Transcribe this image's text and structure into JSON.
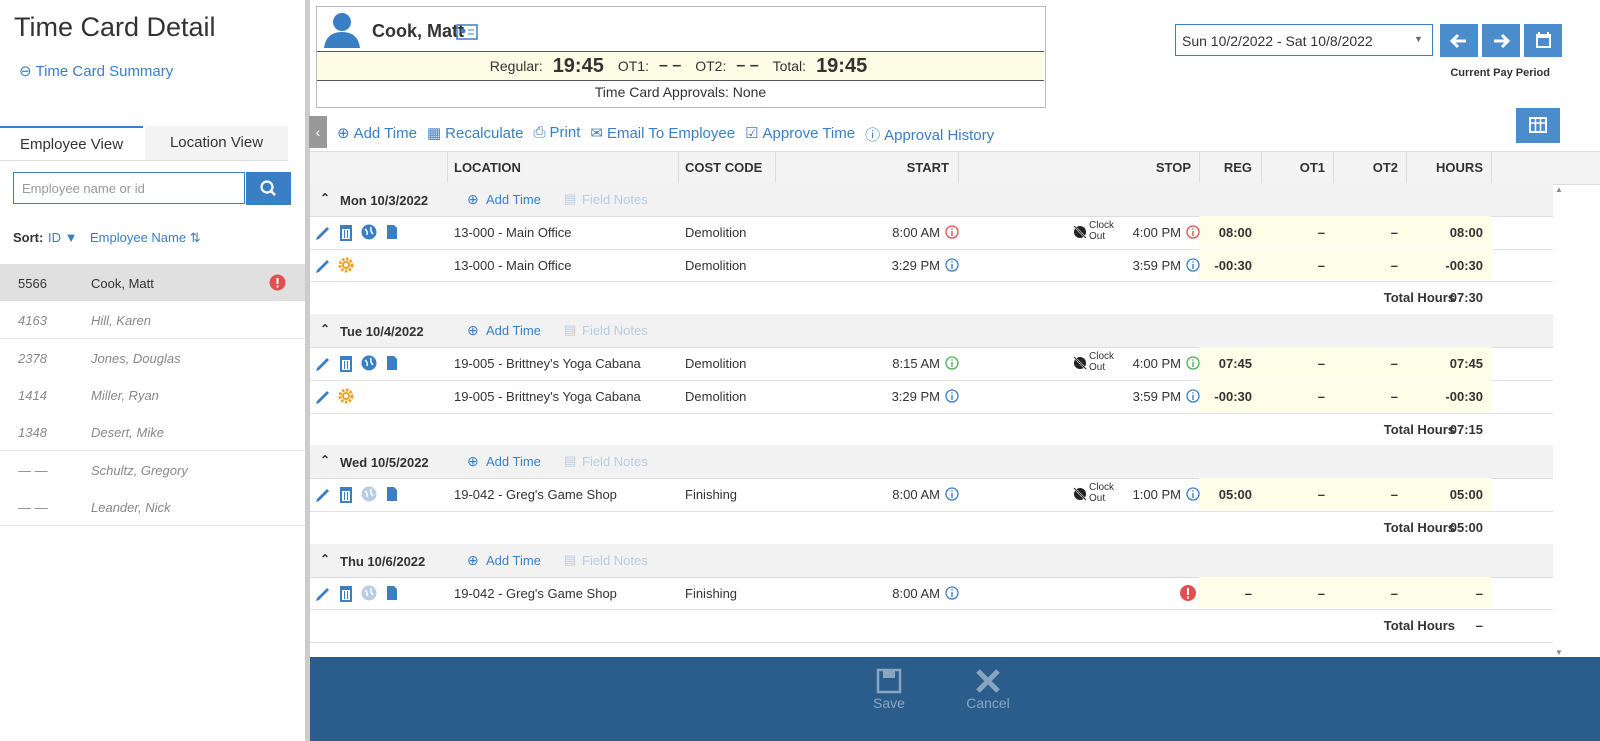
{
  "sidebar": {
    "title": "Time Card Detail",
    "back_link": "Time Card Summary",
    "tabs": [
      "Employee View",
      "Location View"
    ],
    "search_placeholder": "Employee name or id",
    "sort_label": "Sort:",
    "sort_options": [
      "ID",
      "Employee Name"
    ],
    "employees": [
      {
        "id": "5566",
        "name": "Cook, Matt",
        "selected": true,
        "alert": true
      },
      {
        "id": "4163",
        "name": "Hill, Karen"
      },
      {
        "id": "2378",
        "name": "Jones, Douglas"
      },
      {
        "id": "1414",
        "name": "Miller, Ryan"
      },
      {
        "id": "1348",
        "name": "Desert, Mike"
      },
      {
        "id": "— —",
        "name": "Schultz, Gregory"
      },
      {
        "id": "— —",
        "name": "Leander, Nick"
      }
    ]
  },
  "header": {
    "employee": "Cook, Matt",
    "totals": [
      {
        "label": "Regular:",
        "value": "19:45"
      },
      {
        "label": "OT1:",
        "value": "– –"
      },
      {
        "label": "OT2:",
        "value": "– –"
      },
      {
        "label": "Total:",
        "value": "19:45"
      }
    ],
    "approvals": "Time Card Approvals: None"
  },
  "period": {
    "range": "Sun 10/2/2022 - Sat 10/8/2022",
    "label": "Current Pay Period"
  },
  "toolbar": [
    "Add Time",
    "Recalculate",
    "Print",
    "Email To Employee",
    "Approve Time",
    "Approval History"
  ],
  "columns": [
    "LOCATION",
    "COST CODE",
    "START",
    "STOP",
    "REG",
    "OT1",
    "OT2",
    "HOURS"
  ],
  "days": [
    {
      "date": "Mon 10/3/2022",
      "add_time": "Add Time",
      "field_notes": "Field Notes",
      "total_label": "Total Hours",
      "total": "07:30",
      "entries": [
        {
          "icons": [
            "edit",
            "delete",
            "globe",
            "note"
          ],
          "location": "13-000 - Main Office",
          "cost_code": "Demolition",
          "start": "8:00 AM",
          "start_icon": "#e05050",
          "clock_out": "Clock Out",
          "stop": "4:00 PM",
          "stop_icon": "#e05050",
          "reg": "08:00",
          "ot1": "–",
          "ot2": "–",
          "hours": "08:00"
        },
        {
          "icons": [
            "edit",
            "gear"
          ],
          "location": "13-000 - Main Office",
          "cost_code": "Demolition",
          "start": "3:29 PM",
          "start_icon": "#3a7fc4",
          "stop": "3:59 PM",
          "stop_icon": "#3a7fc4",
          "reg": "-00:30",
          "ot1": "–",
          "ot2": "–",
          "hours": "-00:30"
        }
      ]
    },
    {
      "date": "Tue 10/4/2022",
      "add_time": "Add Time",
      "field_notes": "Field Notes",
      "total_label": "Total Hours",
      "total": "07:15",
      "entries": [
        {
          "icons": [
            "edit",
            "delete",
            "globe",
            "note"
          ],
          "location": "19-005 - Brittney's Yoga Cabana",
          "cost_code": "Demolition",
          "start": "8:15 AM",
          "start_icon": "#4caf50",
          "clock_out": "Clock Out",
          "stop": "4:00 PM",
          "stop_icon": "#4caf50",
          "reg": "07:45",
          "ot1": "–",
          "ot2": "–",
          "hours": "07:45"
        },
        {
          "icons": [
            "edit",
            "gear"
          ],
          "location": "19-005 - Brittney's Yoga Cabana",
          "cost_code": "Demolition",
          "start": "3:29 PM",
          "start_icon": "#3a7fc4",
          "stop": "3:59 PM",
          "stop_icon": "#3a7fc4",
          "reg": "-00:30",
          "ot1": "–",
          "ot2": "–",
          "hours": "-00:30"
        }
      ]
    },
    {
      "date": "Wed 10/5/2022",
      "add_time": "Add Time",
      "field_notes": "Field Notes",
      "total_label": "Total Hours",
      "total": "05:00",
      "entries": [
        {
          "icons": [
            "edit",
            "delete",
            "globe-off",
            "note"
          ],
          "location": "19-042 - Greg's Game Shop",
          "cost_code": "Finishing",
          "start": "8:00 AM",
          "start_icon": "#3a7fc4",
          "clock_out": "Clock Out",
          "stop": "1:00 PM",
          "stop_icon": "#3a7fc4",
          "reg": "05:00",
          "ot1": "–",
          "ot2": "–",
          "hours": "05:00"
        }
      ]
    },
    {
      "date": "Thu 10/6/2022",
      "add_time": "Add Time",
      "field_notes": "Field Notes",
      "total_label": "Total Hours",
      "total": "–",
      "entries": [
        {
          "icons": [
            "edit",
            "delete",
            "globe-off",
            "note"
          ],
          "location": "19-042 - Greg's Game Shop",
          "cost_code": "Finishing",
          "start": "8:00 AM",
          "start_icon": "#3a7fc4",
          "stop_alert": true,
          "reg": "–",
          "ot1": "–",
          "ot2": "–",
          "hours": "–"
        }
      ]
    }
  ],
  "footer": {
    "save": "Save",
    "cancel": "Cancel"
  }
}
